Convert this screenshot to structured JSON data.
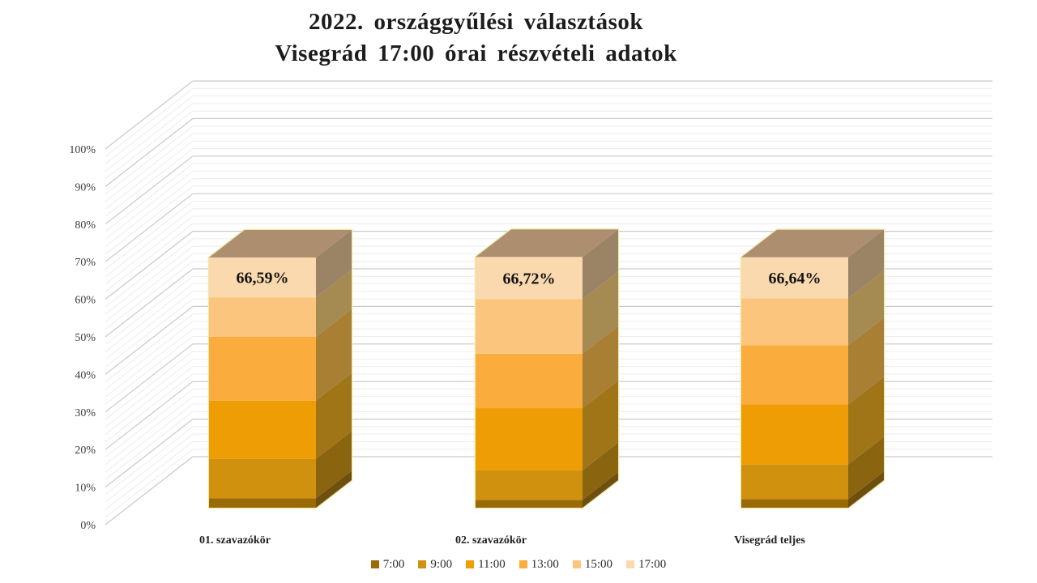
{
  "title": {
    "line1": "2022. országgyűlési választások",
    "line2": "Visegrád 17:00 órai részvételi adatok"
  },
  "chart_data": {
    "type": "bar",
    "subtype": "3d-stacked-cumulative-turnout",
    "title": "2022. országgyűlési választások",
    "subtitle": "Visegrád 17:00 órai részvételi adatok",
    "categories": [
      "01. szavazókör",
      "02. szavazókör",
      "Visegrád teljes"
    ],
    "value_labels": [
      "66,59%",
      "66,72%",
      "66,64%"
    ],
    "ylim": [
      0,
      100
    ],
    "yticks": [
      "0%",
      "10%",
      "20%",
      "30%",
      "40%",
      "50%",
      "60%",
      "70%",
      "80%",
      "90%",
      "100%"
    ],
    "grid": "major and minor horizontal, 3d left-wall diagonals",
    "legend_position": "bottom",
    "series": [
      {
        "name": "7:00",
        "cumulative_pct": [
          2.5,
          2.1,
          2.3
        ],
        "front": "#9A6A07",
        "side": "#6F4F0D"
      },
      {
        "name": "9:00",
        "cumulative_pct": [
          13.0,
          10.0,
          11.5
        ],
        "front": "#D0910E",
        "side": "#8B6410"
      },
      {
        "name": "11:00",
        "cumulative_pct": [
          28.5,
          26.5,
          27.5
        ],
        "front": "#EE9E04",
        "side": "#9F7517"
      },
      {
        "name": "13:00",
        "cumulative_pct": [
          45.5,
          41.0,
          43.2
        ],
        "front": "#FAAC3C",
        "side": "#A87F33"
      },
      {
        "name": "15:00",
        "cumulative_pct": [
          56.0,
          55.5,
          55.7
        ],
        "front": "#FCC57D",
        "side": "#A58A52"
      },
      {
        "name": "17:00",
        "cumulative_pct": [
          66.59,
          66.72,
          66.64
        ],
        "front": "#FBD9AE",
        "side": "#9B8365"
      }
    ],
    "colors": {
      "bar_top_face": "#AD8F70",
      "grid_major": "#C9C9C9",
      "grid_minor": "#ECECEC",
      "bar_outline": "#F1E9A8",
      "value_text": "#141414",
      "tick_text": "#3D3D3D"
    }
  }
}
